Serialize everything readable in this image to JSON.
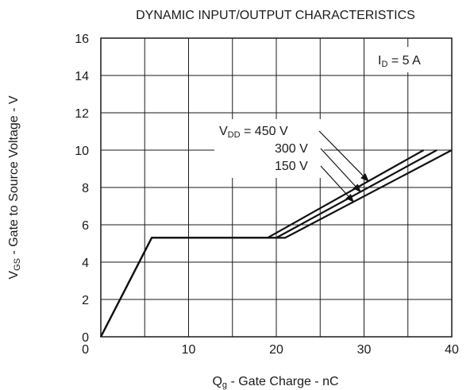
{
  "chart_data": {
    "type": "line",
    "title": "DYNAMIC INPUT/OUTPUT CHARACTERISTICS",
    "xlabel": {
      "main": "Q",
      "sub": "g",
      "rest": " - Gate Charge - nC"
    },
    "ylabel": {
      "main": "V",
      "sub": "GS",
      "rest": " - Gate to Source Voltage - V"
    },
    "xlim": [
      0,
      40
    ],
    "ylim": [
      0,
      16
    ],
    "x_ticks": [
      10,
      20,
      30,
      40
    ],
    "x_tick_labels": [
      "10",
      "20",
      "30",
      "40"
    ],
    "y_ticks": [
      0,
      2,
      4,
      6,
      8,
      10,
      12,
      14,
      16
    ],
    "y_tick_labels": [
      "0",
      "2",
      "4",
      "6",
      "8",
      "10",
      "12",
      "14",
      "16"
    ],
    "grid": true,
    "condition": {
      "main": "I",
      "sub": "D",
      "rest": " = 5 A"
    },
    "legend_prefix": {
      "main": "V",
      "sub": "DD",
      "rest": " = "
    },
    "series": [
      {
        "name": "450 V",
        "points": [
          [
            0,
            0
          ],
          [
            5.8,
            5.3
          ],
          [
            19,
            5.3
          ],
          [
            36.8,
            10
          ]
        ]
      },
      {
        "name": "300 V",
        "points": [
          [
            0,
            0
          ],
          [
            5.8,
            5.3
          ],
          [
            20,
            5.3
          ],
          [
            38.3,
            10
          ]
        ]
      },
      {
        "name": "150 V",
        "points": [
          [
            0,
            0
          ],
          [
            5.8,
            5.3
          ],
          [
            21,
            5.3
          ],
          [
            40,
            10
          ]
        ]
      }
    ]
  }
}
